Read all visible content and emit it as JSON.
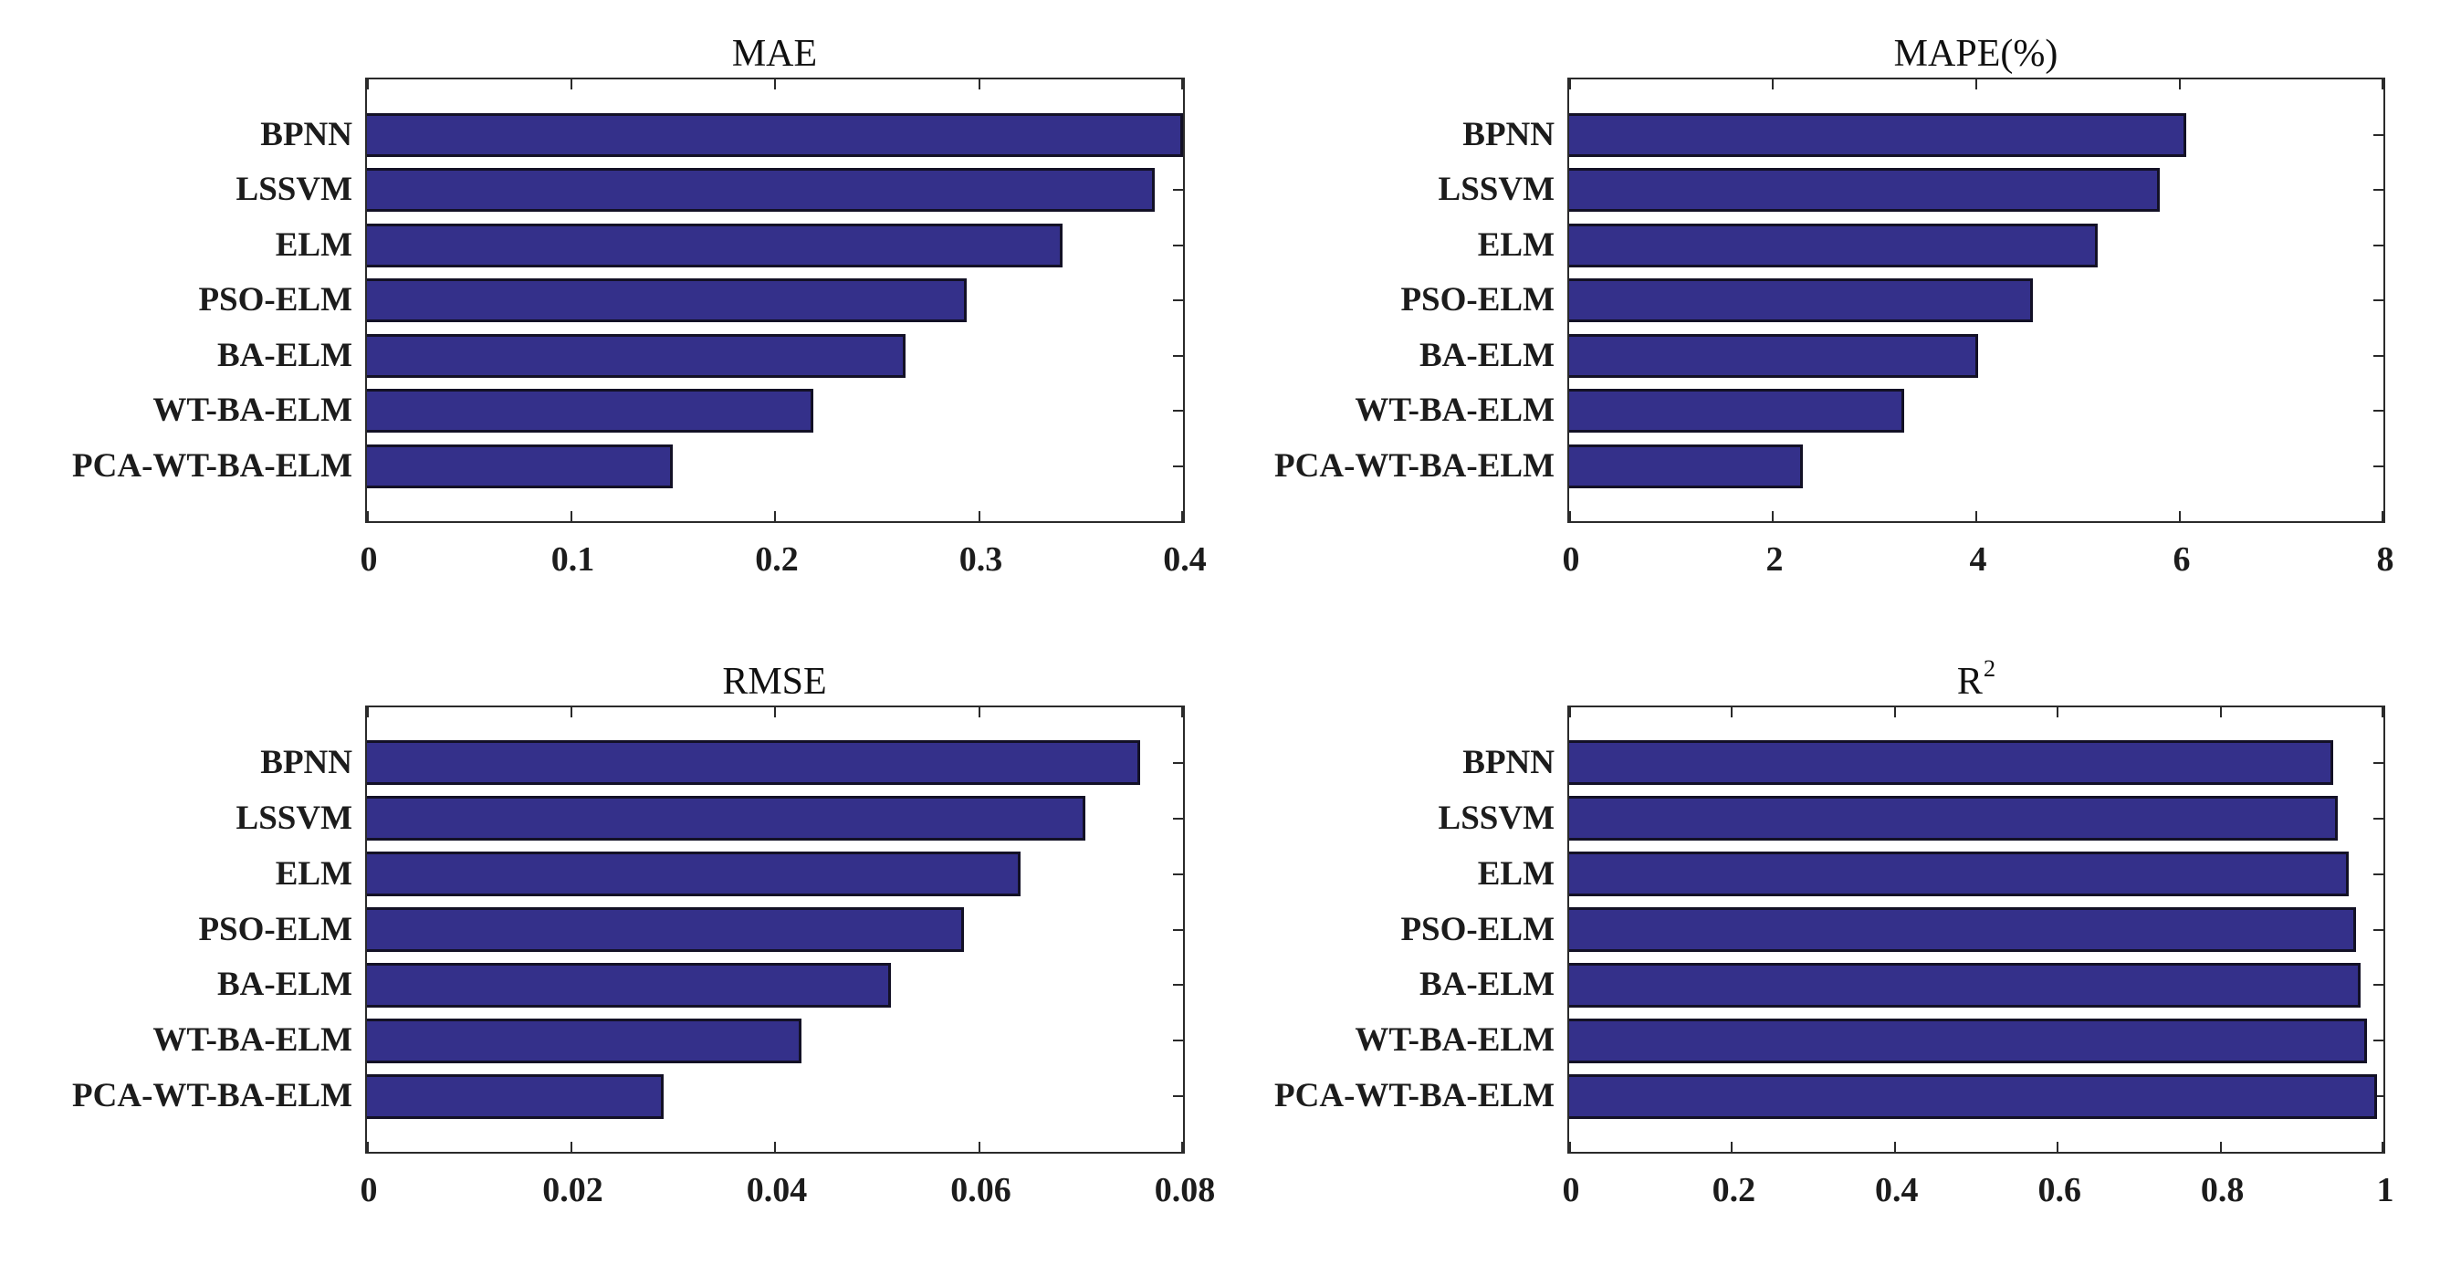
{
  "page": {
    "background": "#ffffff"
  },
  "styles": {
    "bar_fill": "#34308A",
    "bar_edge": "#131126",
    "axis_color": "#2a2a2a",
    "text_color": "#1c1c1c"
  },
  "categories": [
    "BPNN",
    "LSSVM",
    "ELM",
    "PSO-ELM",
    "BA-ELM",
    "WT-BA-ELM",
    "PCA-WT-BA-ELM"
  ],
  "chart_data": [
    {
      "type": "bar",
      "orientation": "horizontal",
      "title": "MAE",
      "title_sup": "",
      "categories": [
        "BPNN",
        "LSSVM",
        "ELM",
        "PSO-ELM",
        "BA-ELM",
        "WT-BA-ELM",
        "PCA-WT-BA-ELM"
      ],
      "values": [
        0.4,
        0.386,
        0.341,
        0.294,
        0.264,
        0.219,
        0.15
      ],
      "xlim": [
        0,
        0.4
      ],
      "x_tick_values": [
        0,
        0.1,
        0.2,
        0.3,
        0.4
      ],
      "x_tick_labels": [
        "0",
        "0.1",
        "0.2",
        "0.3",
        "0.4"
      ],
      "legend": "none",
      "grid": false
    },
    {
      "type": "bar",
      "orientation": "horizontal",
      "title": "MAPE(%)",
      "title_sup": "",
      "categories": [
        "BPNN",
        "LSSVM",
        "ELM",
        "PSO-ELM",
        "BA-ELM",
        "WT-BA-ELM",
        "PCA-WT-BA-ELM"
      ],
      "values": [
        6.06,
        5.8,
        5.19,
        4.56,
        4.02,
        3.29,
        2.3
      ],
      "xlim": [
        0,
        8
      ],
      "x_tick_values": [
        0,
        2,
        4,
        6,
        8
      ],
      "x_tick_labels": [
        "0",
        "2",
        "4",
        "6",
        "8"
      ],
      "legend": "none",
      "grid": false
    },
    {
      "type": "bar",
      "orientation": "horizontal",
      "title": "RMSE",
      "title_sup": "",
      "categories": [
        "BPNN",
        "LSSVM",
        "ELM",
        "PSO-ELM",
        "BA-ELM",
        "WT-BA-ELM",
        "PCA-WT-BA-ELM"
      ],
      "values": [
        0.0758,
        0.0704,
        0.0641,
        0.0585,
        0.0514,
        0.0426,
        0.0291
      ],
      "xlim": [
        0,
        0.08
      ],
      "x_tick_values": [
        0,
        0.02,
        0.04,
        0.06,
        0.08
      ],
      "x_tick_labels": [
        "0",
        "0.02",
        "0.04",
        "0.06",
        "0.08"
      ],
      "legend": "none",
      "grid": false
    },
    {
      "type": "bar",
      "orientation": "horizontal",
      "title": "R",
      "title_sup": "2",
      "categories": [
        "BPNN",
        "LSSVM",
        "ELM",
        "PSO-ELM",
        "BA-ELM",
        "WT-BA-ELM",
        "PCA-WT-BA-ELM"
      ],
      "values": [
        0.938,
        0.944,
        0.957,
        0.966,
        0.972,
        0.98,
        0.992
      ],
      "xlim": [
        0,
        1
      ],
      "x_tick_values": [
        0,
        0.2,
        0.4,
        0.6,
        0.8,
        1
      ],
      "x_tick_labels": [
        "0",
        "0.2",
        "0.4",
        "0.6",
        "0.8",
        "1"
      ],
      "legend": "none",
      "grid": false
    }
  ]
}
